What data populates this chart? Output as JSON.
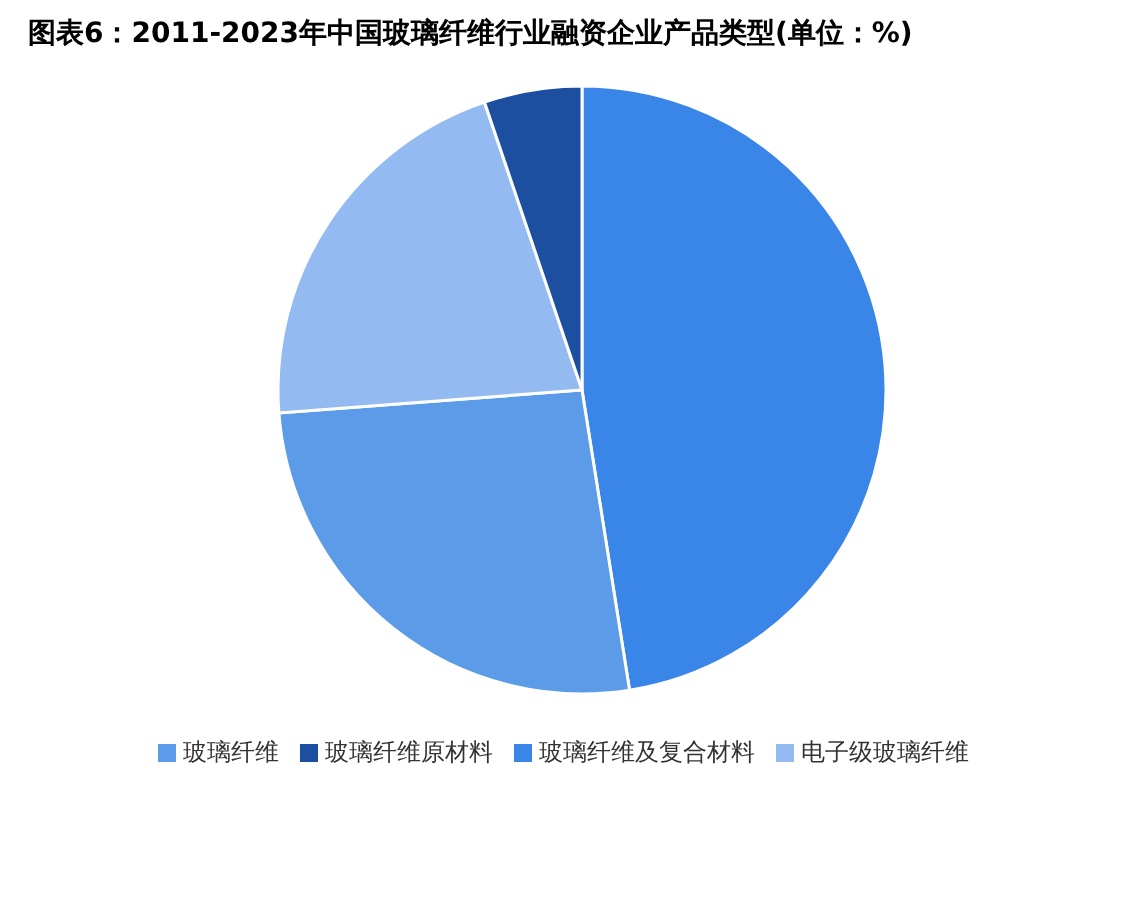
{
  "chart_data": {
    "type": "pie",
    "title": "图表6：2011-2023年中国玻璃纤维行业融资企业产品类型(单位：%)",
    "categories": [
      "玻璃纤维及复合材料",
      "玻璃纤维",
      "电子级玻璃纤维",
      "玻璃纤维原材料"
    ],
    "values": [
      47.5,
      26.3,
      21,
      5.2
    ],
    "colors": [
      "#3a86e8",
      "#5b9be8",
      "#93bbf2",
      "#1c4fa0"
    ],
    "legend": "bottom"
  }
}
